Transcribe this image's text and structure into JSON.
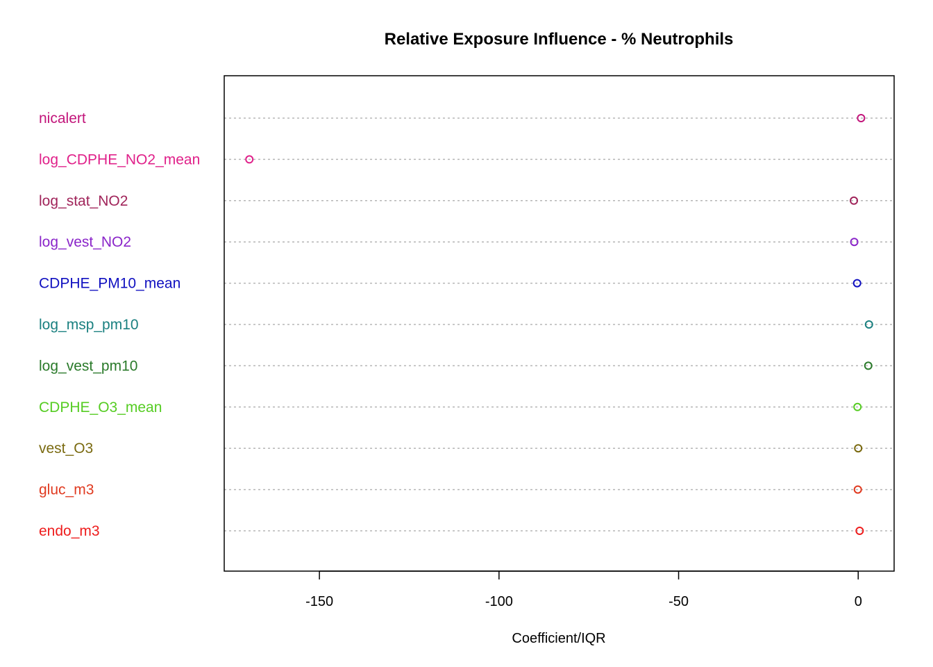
{
  "chart_data": {
    "type": "scatter",
    "title": "Relative Exposure Influence - % Neutrophils",
    "xlabel": "Coefficient/IQR",
    "ylabel": "",
    "xlim": [
      -176.5,
      10
    ],
    "xticks": [
      -150,
      -100,
      -50,
      0
    ],
    "xtick_labels": [
      "-150",
      "-100",
      "-50",
      "0"
    ],
    "grid": "dotted horizontal guide per category",
    "legend": "none",
    "categories": [
      {
        "name": "nicalert",
        "value": 0.8,
        "color": "#C2147A"
      },
      {
        "name": "log_CDPHE_NO2_mean",
        "value": -169.5,
        "color": "#E0218A"
      },
      {
        "name": "log_stat_NO2",
        "value": -1.2,
        "color": "#A0245A"
      },
      {
        "name": "log_vest_NO2",
        "value": -1.1,
        "color": "#8A25C9"
      },
      {
        "name": "CDPHE_PM10_mean",
        "value": -0.3,
        "color": "#1010C0"
      },
      {
        "name": "log_msp_pm10",
        "value": 3.0,
        "color": "#1A8080"
      },
      {
        "name": "log_vest_pm10",
        "value": 2.8,
        "color": "#2A7A2A"
      },
      {
        "name": "CDPHE_O3_mean",
        "value": -0.2,
        "color": "#55CC22"
      },
      {
        "name": "vest_O3",
        "value": 0.0,
        "color": "#7A6A10"
      },
      {
        "name": "gluc_m3",
        "value": -0.1,
        "color": "#E03A20"
      },
      {
        "name": "endo_m3",
        "value": 0.4,
        "color": "#EE1C1C"
      }
    ]
  }
}
